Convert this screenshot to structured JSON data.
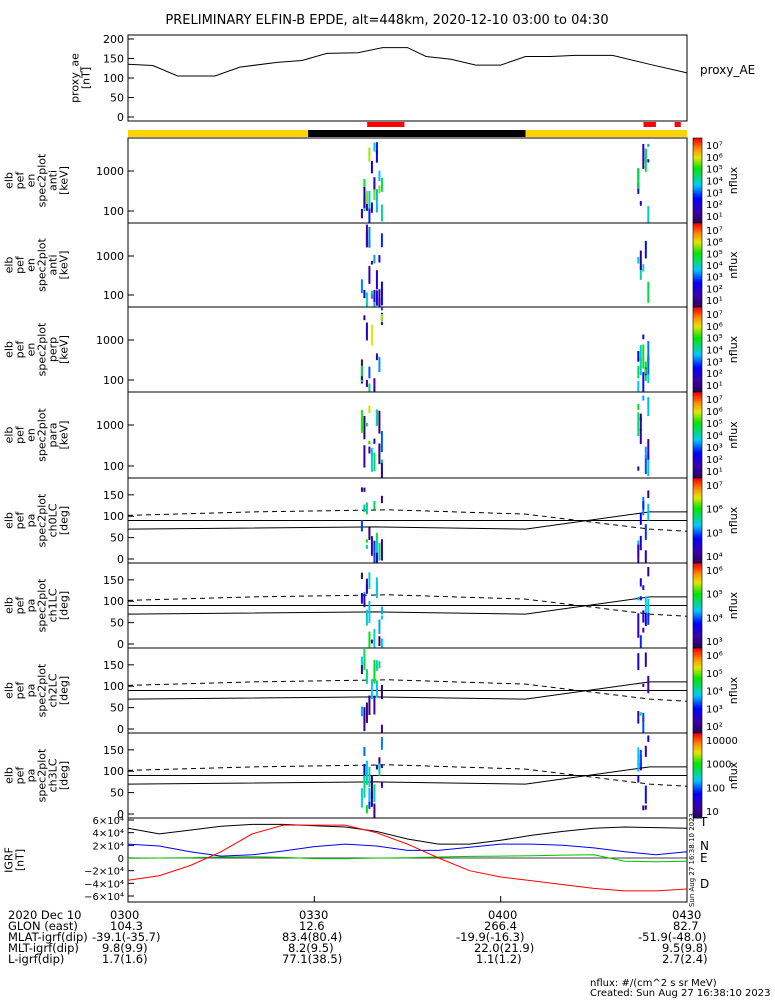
{
  "title": "PRELIMINARY ELFIN-B EPDE, alt=448km, 2020-12-10 03:00 to 04:30",
  "ae_panel": {
    "ylabel": [
      "proxy_ae",
      "[nT]"
    ],
    "yticks": [
      "200",
      "150",
      "100",
      "50",
      "0"
    ],
    "legend": "proxy_AE"
  },
  "spec_panels": [
    {
      "ylabel": [
        "elb",
        "pef",
        "en",
        "spec2plot",
        "anti",
        "[keV]"
      ],
      "yticks": [
        "1000",
        "100"
      ],
      "cbar_ticks": [
        "10⁷",
        "10⁶",
        "10⁵",
        "10⁴",
        "10³",
        "10²",
        "10¹"
      ],
      "cbar_label": "nflux"
    },
    {
      "ylabel": [
        "elb",
        "pef",
        "en",
        "spec2plot",
        "anti",
        "[keV]"
      ],
      "yticks": [
        "1000",
        "100"
      ],
      "cbar_ticks": [
        "10⁷",
        "10⁶",
        "10⁵",
        "10⁴",
        "10³",
        "10²",
        "10¹"
      ],
      "cbar_label": "nflux"
    },
    {
      "ylabel": [
        "elb",
        "pef",
        "en",
        "spec2plot",
        "perp",
        "[keV]"
      ],
      "yticks": [
        "1000",
        "100"
      ],
      "cbar_ticks": [
        "10⁷",
        "10⁶",
        "10⁵",
        "10⁴",
        "10³",
        "10²",
        "10¹"
      ],
      "cbar_label": "nflux"
    },
    {
      "ylabel": [
        "elb",
        "pef",
        "en",
        "spec2plot",
        "para",
        "[keV]"
      ],
      "yticks": [
        "1000",
        "100"
      ],
      "cbar_ticks": [
        "10⁷",
        "10⁶",
        "10⁵",
        "10⁴",
        "10³",
        "10²",
        "10¹"
      ],
      "cbar_label": "nflux"
    }
  ],
  "pa_panels": [
    {
      "ylabel": [
        "elb",
        "pef",
        "pa",
        "spec2plot",
        "ch0LC",
        "[deg]"
      ],
      "yticks": [
        "150",
        "100",
        "50",
        "0"
      ],
      "cbar_ticks": [
        "10⁷",
        "10⁶",
        "10⁵",
        "10⁴"
      ],
      "cbar_label": "nflux"
    },
    {
      "ylabel": [
        "elb",
        "pef",
        "pa",
        "spec2plot",
        "ch1LC",
        "[deg]"
      ],
      "yticks": [
        "150",
        "100",
        "50",
        "0"
      ],
      "cbar_ticks": [
        "10⁶",
        "10⁵",
        "10⁴",
        "10³"
      ],
      "cbar_label": "nflux"
    },
    {
      "ylabel": [
        "elb",
        "pef",
        "pa",
        "spec2plot",
        "ch2LC",
        "[deg]"
      ],
      "yticks": [
        "150",
        "100",
        "50",
        "0"
      ],
      "cbar_ticks": [
        "10⁶",
        "10⁵",
        "10⁴",
        "10³",
        "10²"
      ],
      "cbar_label": "nflux"
    },
    {
      "ylabel": [
        "elb",
        "pef",
        "pa",
        "spec2plot",
        "ch3LC",
        "[deg]"
      ],
      "yticks": [
        "150",
        "100",
        "50",
        "0"
      ],
      "cbar_ticks": [
        "10000",
        "1000",
        "100",
        "10"
      ],
      "cbar_label": "nflux"
    }
  ],
  "igrf_panel": {
    "ylabel": [
      "IGRF",
      "[nT]"
    ],
    "yticks": [
      "6×10⁴",
      "4×10⁴",
      "2×10⁴",
      "0",
      "−2×10⁴",
      "−4×10⁴",
      "−6×10⁴"
    ],
    "labels": [
      "T",
      "N",
      "E",
      "D"
    ],
    "side_note": "Sun Aug 27 16:38:10 2023"
  },
  "x_axis": {
    "ticks": [
      "0300",
      "0330",
      "0400",
      "0430"
    ]
  },
  "footer_rows": [
    {
      "label": "2020 Dec 10",
      "vals": [
        "",
        "",
        "",
        ""
      ]
    },
    {
      "label": "GLON (east)",
      "vals": [
        "104.3",
        "12.6",
        "266.4",
        "82.7"
      ]
    },
    {
      "label": "MLAT-igrf(dip)",
      "vals": [
        "-39.1(-35.7)",
        "83.4(80.4)",
        "-19.9(-16.3)",
        "-51.9(-48.0)"
      ]
    },
    {
      "label": "MLT-igrf(dip)",
      "vals": [
        "9.8(9.9)",
        "8.2(9.5)",
        "22.0(21.9)",
        "9.5(9.8)"
      ]
    },
    {
      "label": "L-igrf(dip)",
      "vals": [
        "1.7(1.6)",
        "77.1(38.5)",
        "1.1(1.2)",
        "2.7(2.4)"
      ]
    }
  ],
  "footnote": {
    "units": "nflux: #/(cm^2 s sr MeV)",
    "created": "Created: Sun Aug 27 16:38:10 2023"
  },
  "colors": {
    "yellow": "#ffd400",
    "red": "#ff0000",
    "blue": "#0000ff",
    "green": "#00c000",
    "black": "#000000"
  },
  "chart_data": {
    "type": "line",
    "time_range": [
      "2020-12-10 03:00",
      "2020-12-10 04:30"
    ],
    "proxy_ae": {
      "time_min": [
        0,
        4,
        8,
        14,
        18,
        24,
        28,
        32,
        37,
        41,
        45,
        48,
        52,
        56,
        60,
        64,
        68,
        72,
        78,
        84,
        90
      ],
      "values": [
        135,
        132,
        105,
        105,
        128,
        140,
        145,
        163,
        165,
        178,
        178,
        155,
        148,
        133,
        133,
        155,
        155,
        158,
        158,
        135,
        113
      ]
    },
    "spectrogram_bursts": [
      {
        "time_min": [
          37.5,
          41.0
        ]
      },
      {
        "time_min": [
          82.0,
          84.0
        ]
      }
    ],
    "igrf": {
      "time_min": [
        0,
        5,
        10,
        15,
        20,
        25,
        30,
        35,
        40,
        45,
        50,
        55,
        60,
        65,
        70,
        75,
        80,
        85,
        90
      ],
      "T": [
        47000,
        38000,
        44000,
        50000,
        53000,
        53000,
        51000,
        49000,
        42000,
        30000,
        22000,
        22000,
        28000,
        36000,
        42000,
        47000,
        49000,
        48000,
        47000
      ],
      "N": [
        22000,
        19000,
        10000,
        3000,
        5000,
        11000,
        18000,
        22000,
        19000,
        12000,
        12000,
        17000,
        22000,
        22000,
        20000,
        16000,
        10000,
        5000,
        10000
      ],
      "E": [
        -500,
        0,
        500,
        1500,
        2000,
        1000,
        -1000,
        -1000,
        0,
        500,
        1500,
        2500,
        3000,
        3500,
        4500,
        5000,
        -5000,
        -6000,
        -5000
      ],
      "D": [
        -35000,
        -28000,
        -12000,
        10000,
        38000,
        52000,
        52000,
        52000,
        40000,
        22000,
        0,
        -20000,
        -30000,
        -36000,
        -42000,
        -48000,
        -52000,
        -52000,
        -49000
      ]
    }
  }
}
